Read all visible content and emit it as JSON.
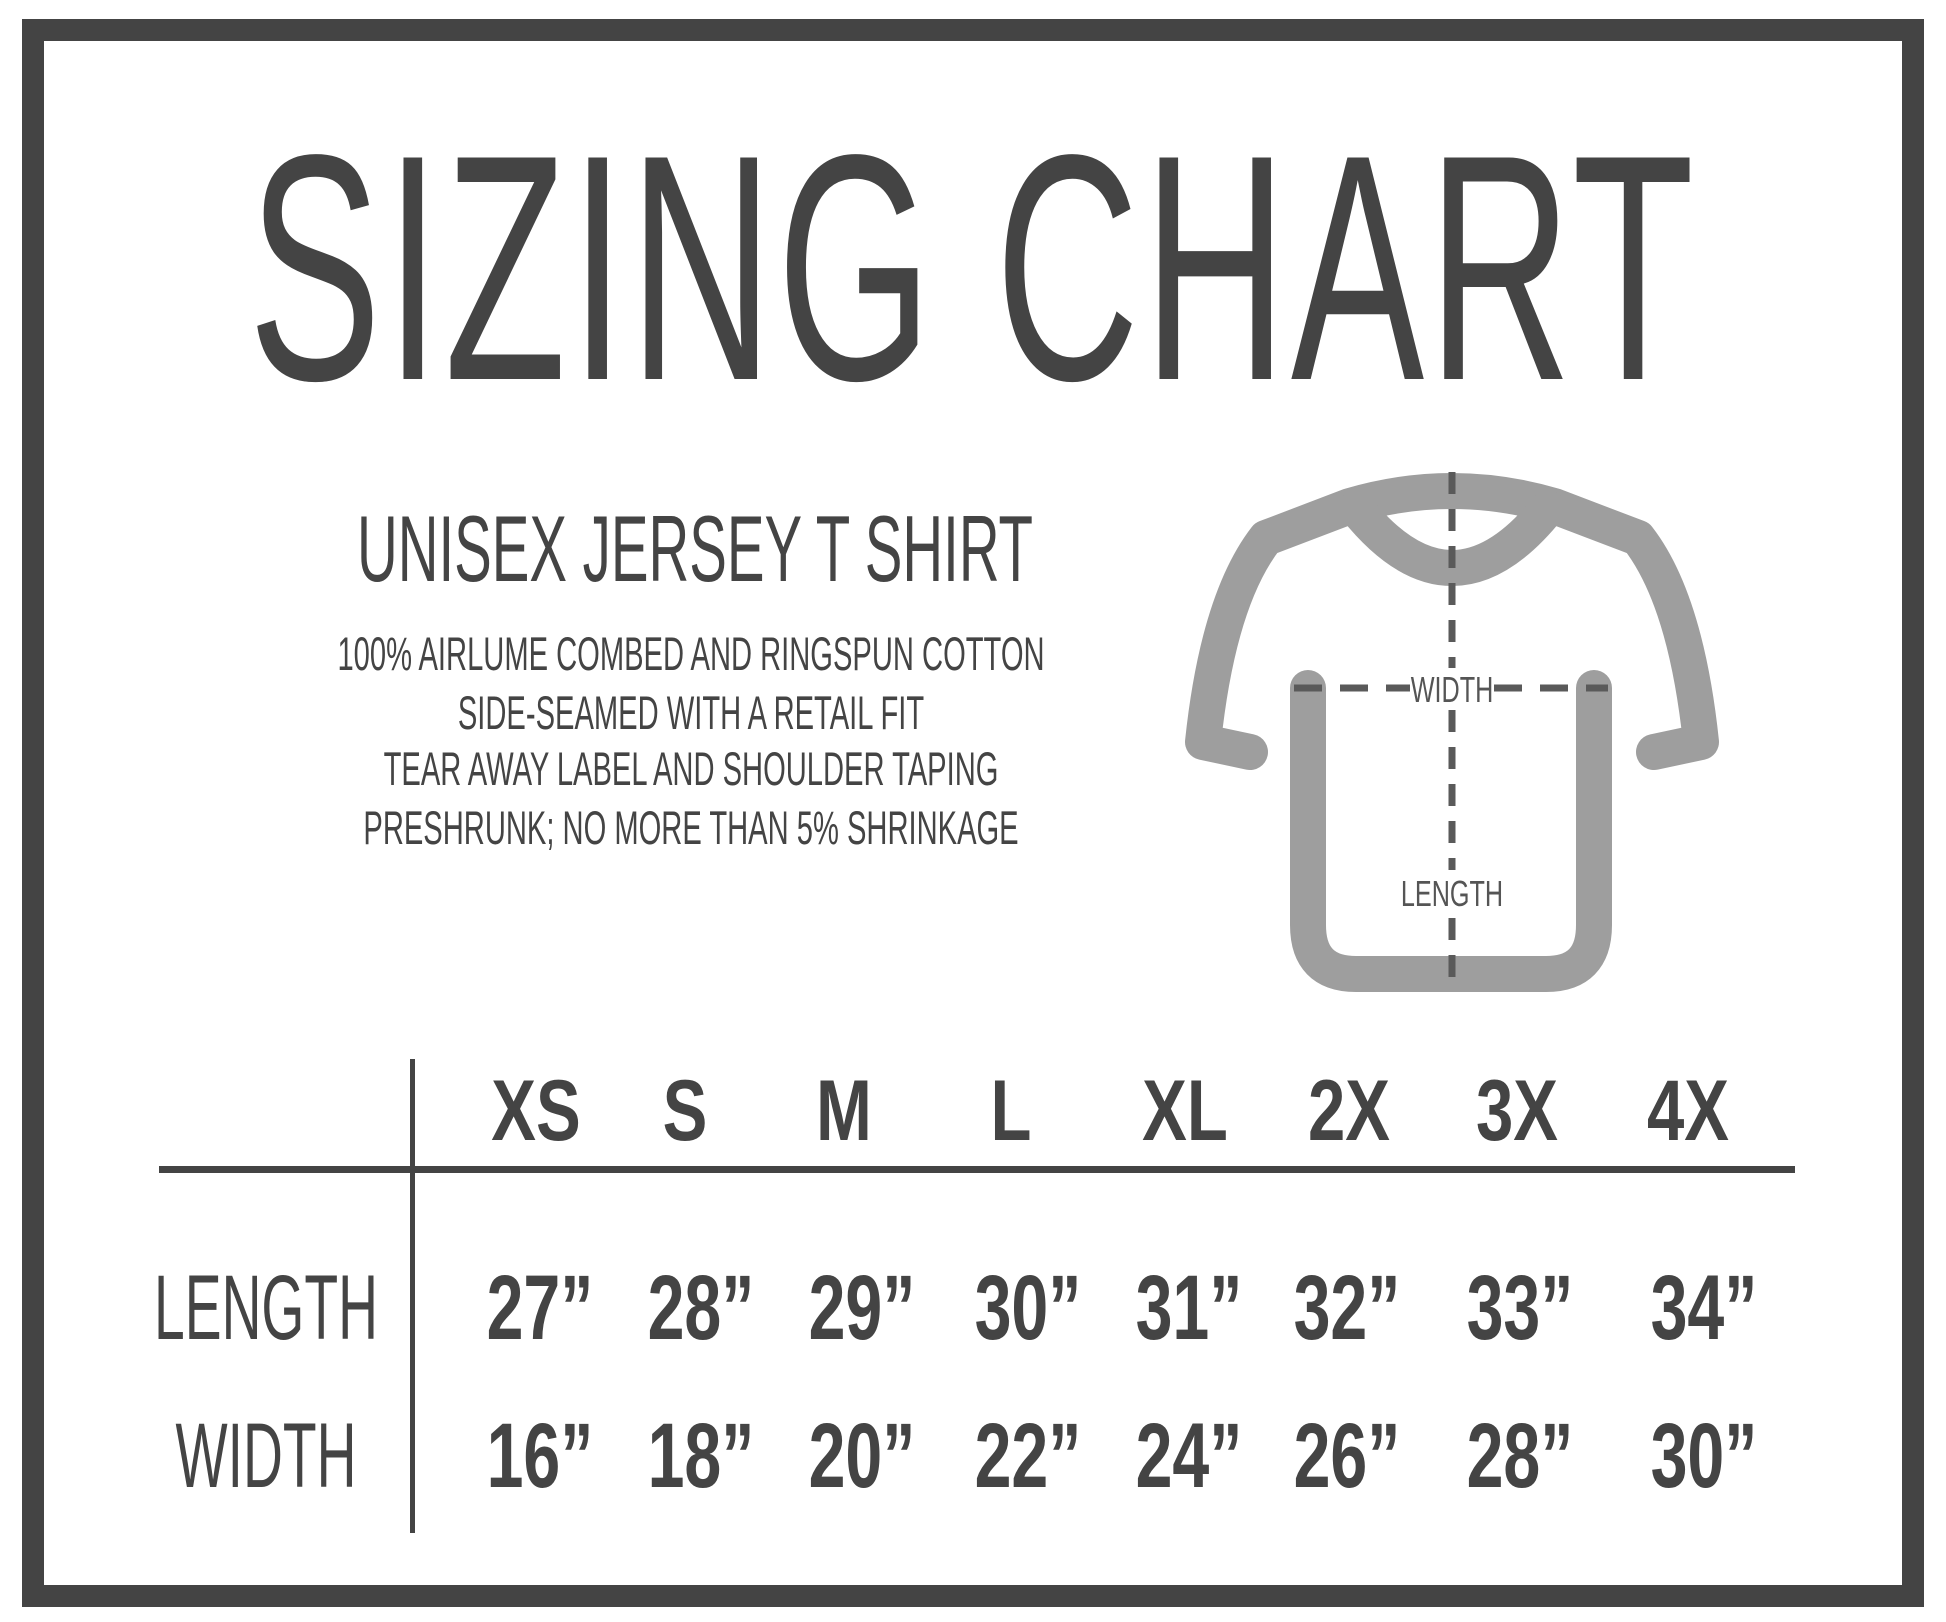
{
  "title": "SIZING CHART",
  "product": {
    "name": "UNISEX JERSEY T SHIRT",
    "features": [
      "100% AIRLUME COMBED AND RINGSPUN COTTON",
      "SIDE-SEAMED WITH A RETAIL FIT",
      "TEAR AWAY LABEL AND SHOULDER TAPING",
      "PRESHRUNK; NO MORE THAN 5% SHRINKAGE"
    ]
  },
  "diagram": {
    "width_label": "WIDTH",
    "length_label": "LENGTH",
    "shirt_color": "#9e9e9e",
    "dash_color": "#5a5a5a"
  },
  "table": {
    "sizes": [
      "XS",
      "S",
      "M",
      "L",
      "XL",
      "2X",
      "3X",
      "4X"
    ],
    "rows": [
      {
        "label": "LENGTH",
        "values": [
          "27”",
          "28”",
          "29”",
          "30”",
          "31”",
          "32”",
          "33”",
          "34”"
        ]
      },
      {
        "label": "WIDTH",
        "values": [
          "16”",
          "18”",
          "20”",
          "22”",
          "24”",
          "26”",
          "28”",
          "30”"
        ]
      }
    ]
  },
  "colors": {
    "text": "#444444",
    "border": "#444444"
  }
}
